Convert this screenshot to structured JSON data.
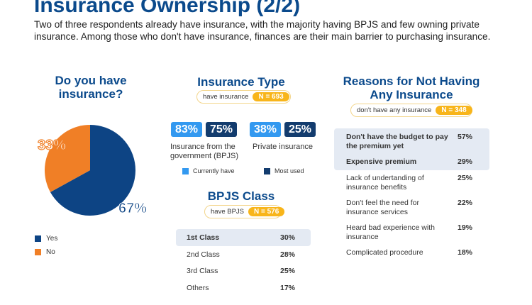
{
  "title": "Insurance Ownership (2/2)",
  "description": "Two of three respondents already have insurance, with the majority having BPJS and few owning private insurance. Among those who don't have insurance, finances are their main barrier to purchasing insurance.",
  "colors": {
    "yes": "#0d4484",
    "no": "#f07f26",
    "currently_have": "#3399f0",
    "most_used": "#133c6e",
    "badge": "#f8b51a"
  },
  "pie": {
    "title": "Do you have insurance?",
    "slices": [
      {
        "label": "Yes",
        "value": 67,
        "text": "67%"
      },
      {
        "label": "No",
        "value": 33,
        "text": "33%"
      }
    ]
  },
  "insurance_type": {
    "title": "Insurance Type",
    "badge_label": "have insurance",
    "badge_n": "N = 693",
    "items": [
      {
        "label": "Insurance from the government (BPJS)",
        "currently": "83%",
        "most_used": "75%"
      },
      {
        "label": "Private insurance",
        "currently": "38%",
        "most_used": "25%"
      }
    ],
    "legend": [
      "Currently have",
      "Most used"
    ]
  },
  "bpjs_class": {
    "title": "BPJS Class",
    "badge_label": "have BPJS",
    "badge_n": "N = 576",
    "rows": [
      {
        "label": "1st Class",
        "value": "30%"
      },
      {
        "label": "2nd Class",
        "value": "28%"
      },
      {
        "label": "3rd Class",
        "value": "25%"
      },
      {
        "label": "Others",
        "value": "17%"
      }
    ]
  },
  "reasons": {
    "title": "Reasons for Not Having Any Insurance",
    "badge_label": "don't have any insurance",
    "badge_n": "N = 348",
    "rows": [
      {
        "label": "Don't have the budget to pay the premium yet",
        "value": "57%"
      },
      {
        "label": "Expensive premium",
        "value": "29%"
      },
      {
        "label": "Lack of undertanding of insurance benefits",
        "value": "25%"
      },
      {
        "label": "Don't feel the need for insurance services",
        "value": "22%"
      },
      {
        "label": "Heard bad experience with insurance",
        "value": "19%"
      },
      {
        "label": "Complicated procedure",
        "value": "18%"
      }
    ]
  }
}
